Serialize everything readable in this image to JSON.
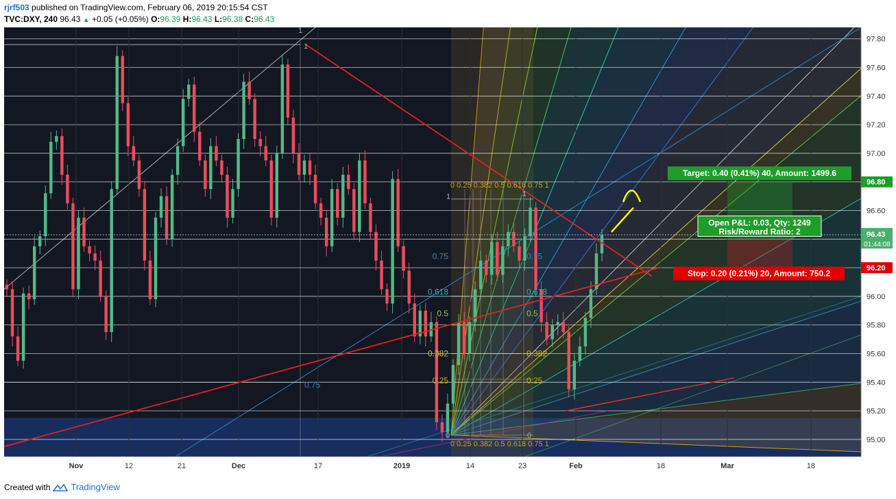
{
  "header": {
    "username": "rjrf503",
    "published_text": "published on TradingView.com, February 06, 2019 20:15:54 CST",
    "symbol": "TVC:DXY, 240",
    "last": "96.43",
    "change": "+0.05 (+0.05%)",
    "o_label": "O:",
    "o": "96.39",
    "h_label": "H:",
    "h": "96.43",
    "l_label": "L:",
    "l": "96.38",
    "c_label": "C:",
    "c": "96.43"
  },
  "footer": {
    "created_with": "Created with",
    "brand": "TradingView"
  },
  "chart_data": {
    "type": "line",
    "title": "TVC:DXY, 240",
    "ylim": [
      94.88,
      97.88
    ],
    "y_ticks": [
      "95.00",
      "95.20",
      "95.40",
      "95.60",
      "95.80",
      "96.00",
      "96.20",
      "96.40",
      "96.60",
      "96.80",
      "97.00",
      "97.20",
      "97.40",
      "97.60",
      "97.80"
    ],
    "x_ticks": [
      "Nov",
      "12",
      "21",
      "Dec",
      "17",
      "2019",
      "14",
      "23",
      "Feb",
      "18",
      "Mar",
      "18"
    ],
    "series": [
      {
        "values": [
          96.05,
          95.72,
          95.55,
          96.02,
          95.98,
          96.35,
          96.42,
          96.72,
          97.08,
          97.12,
          96.85,
          96.65,
          96.05,
          96.55,
          96.35,
          96.3,
          96.25,
          96.0,
          95.75,
          96.75,
          97.68,
          97.35,
          97.05,
          96.95,
          96.75,
          96.25,
          95.98,
          96.55,
          96.7,
          96.4,
          96.85,
          97.05,
          97.38,
          97.48,
          97.15,
          96.95,
          96.75,
          97.05,
          96.95,
          96.85,
          96.55,
          96.75,
          97.1,
          97.5,
          97.38,
          97.1,
          97.05,
          96.95,
          96.55,
          97.0,
          97.62,
          97.25,
          97.0,
          96.85,
          96.95,
          96.85,
          96.65,
          96.55,
          96.35,
          96.75,
          96.55,
          96.85,
          96.75,
          96.45,
          96.95,
          96.65,
          96.45,
          96.25,
          96.05,
          95.95,
          96.82,
          96.35,
          96.18,
          95.95,
          95.72,
          95.9,
          95.72,
          95.82,
          95.12,
          95.05,
          95.25,
          95.52,
          95.82,
          95.6,
          95.82,
          96.05,
          96.25,
          96.15,
          96.38,
          96.15,
          96.35,
          96.45,
          96.35,
          96.25,
          96.42,
          96.62,
          96.05,
          95.82,
          95.7,
          95.8,
          95.82,
          95.75,
          95.35,
          95.55,
          95.65,
          95.85,
          96.05,
          96.3,
          96.43
        ]
      }
    ],
    "last_price": "96.43",
    "last_price_time": "01:44:08",
    "price_marks": {
      "target_price": "96.80",
      "entry_price": "96.40",
      "stop_price": "96.20"
    },
    "position": {
      "target_label": "Target: 0.40 (0.41%) 40, Amount: 1499.6",
      "stop_label": "Stop: 0.20 (0.21%) 20, Amount: 750.2",
      "open_pnl_label": "Open P&L: 0.03, Qty: 1249",
      "risk_reward_label": "Risk/Reward Ratio: 2"
    },
    "fib_labels": {
      "left_levels": [
        "0.75",
        "0.618",
        "0.5",
        "0.382",
        "0.25"
      ],
      "right_levels": [
        "0.75",
        "0.618",
        "0.5",
        "0.382",
        "0.25"
      ],
      "far_left": "0.75",
      "top_box": "0 0.25 0.382 0.5 0.618 0.75 1",
      "bottom_box": "0 0.25 0.382 0.5 0.618 0.75 1",
      "one": "1",
      "zero": "0"
    },
    "colors": {
      "background": "#131722",
      "candle_up": "#53b987",
      "candle_down": "#eb4d5c",
      "trendline": "#e02020",
      "annotation_arrow": "#ffff00",
      "target_box": "#1e9d2a",
      "stop_box": "#e00000",
      "axis_bg": "#ffffff"
    }
  }
}
